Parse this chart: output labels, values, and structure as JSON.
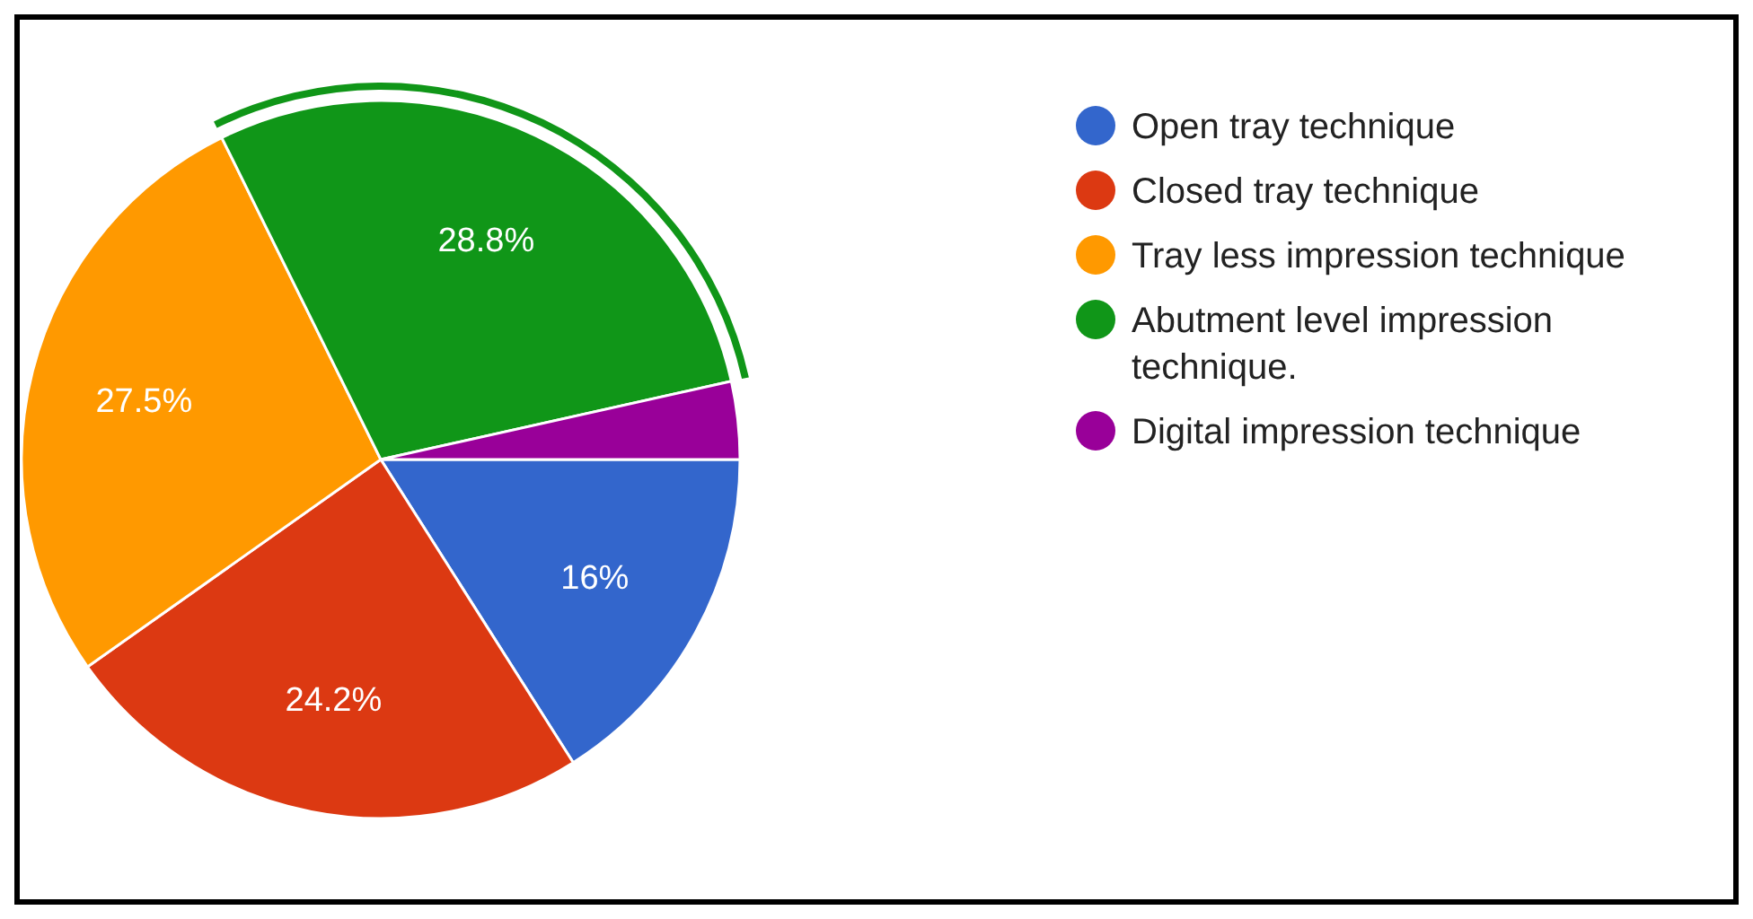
{
  "chart_data": {
    "type": "pie",
    "categories": [
      "Open tray technique",
      "Closed tray technique",
      "Tray less impression technique",
      "Abutment level impression technique.",
      "Digital impression technique"
    ],
    "values": [
      16,
      24.2,
      27.5,
      28.8,
      3.5
    ],
    "colors": [
      "#3366cc",
      "#dc3912",
      "#ff9900",
      "#109618",
      "#990099"
    ],
    "value_labels": [
      "16%",
      "24.2%",
      "27.5%",
      "28.8%",
      null
    ],
    "legend": "right"
  }
}
